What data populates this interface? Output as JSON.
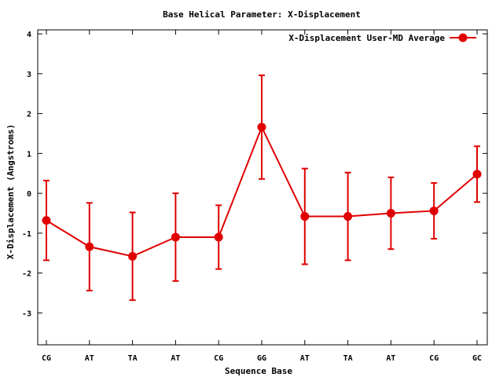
{
  "chart_data": {
    "type": "line",
    "title": "Base  Helical Parameter: X-Displacement",
    "xlabel": "Sequence Base",
    "ylabel": "X-Displacement (Angstroms)",
    "categories": [
      "CG",
      "AT",
      "TA",
      "AT",
      "CG",
      "GG",
      "AT",
      "TA",
      "AT",
      "CG",
      "GC"
    ],
    "ylim": [
      -3.8,
      4.1
    ],
    "yticks": [
      -3,
      -2,
      -1,
      0,
      1,
      2,
      3,
      4
    ],
    "ytick_labels": [
      "-3",
      "-2",
      "-1",
      "0",
      "1",
      "2",
      "3",
      "4"
    ],
    "grid": false,
    "legend_position": "top-right",
    "series": [
      {
        "name": "X-Displacement User-MD Average",
        "color": "#e00000",
        "marker": "circle",
        "error_bars": true,
        "values": [
          -0.68,
          -1.34,
          -1.58,
          -1.1,
          -1.1,
          1.66,
          -0.58,
          -0.58,
          -0.5,
          -0.44,
          0.48
        ],
        "error_low": [
          -1.68,
          -2.44,
          -2.68,
          -2.2,
          -1.9,
          0.36,
          -1.78,
          -1.68,
          -1.4,
          -1.14,
          -0.22
        ],
        "error_high": [
          0.32,
          -0.24,
          -0.48,
          0.0,
          -0.3,
          2.96,
          0.62,
          0.52,
          0.4,
          0.26,
          1.18
        ]
      }
    ]
  }
}
